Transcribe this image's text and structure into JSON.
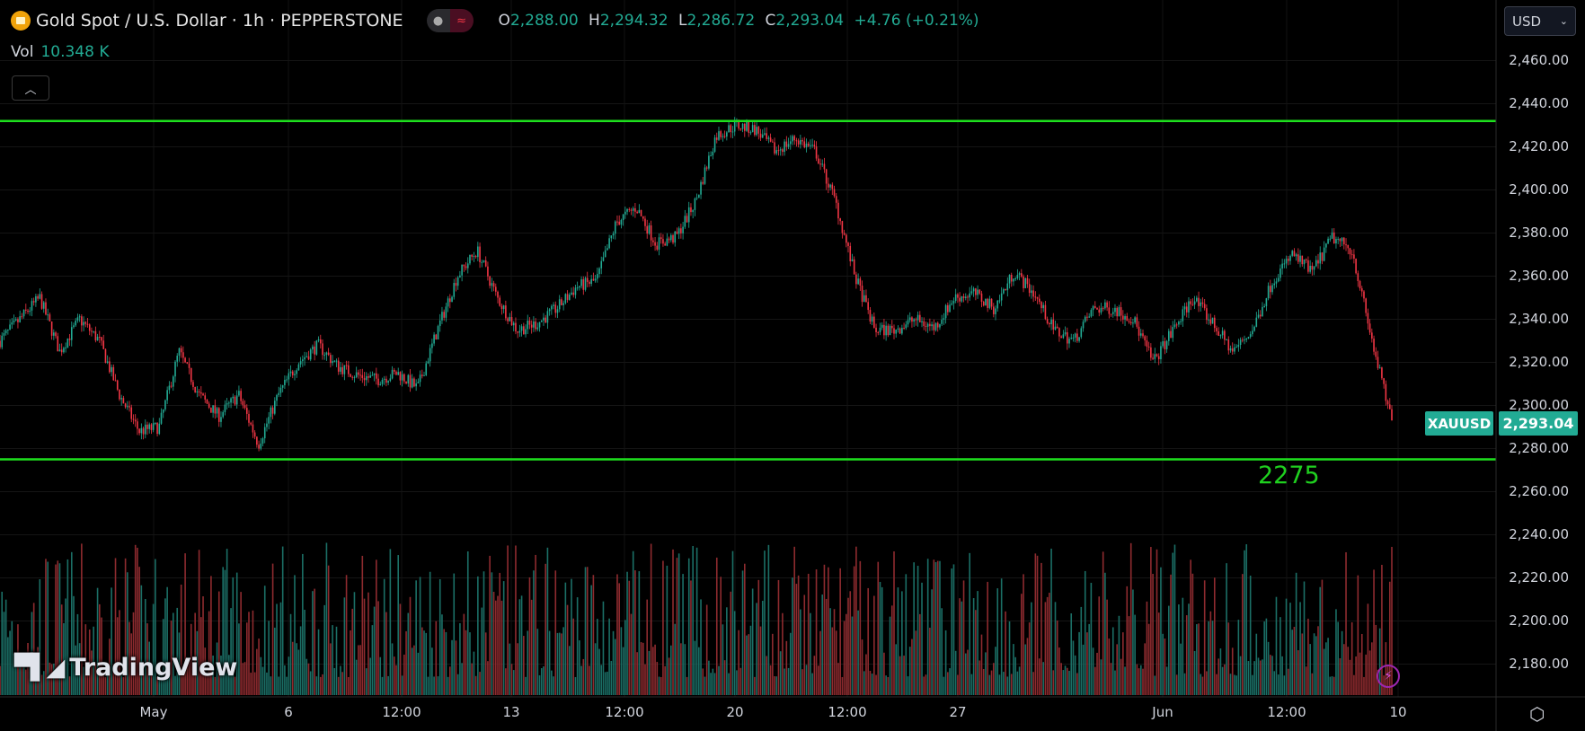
{
  "header": {
    "title": "Gold Spot / U.S. Dollar · 1h · PEPPERSTONE",
    "ohlc": [
      {
        "key": "O",
        "value": "2,288.00"
      },
      {
        "key": "H",
        "value": "2,294.32"
      },
      {
        "key": "L",
        "value": "2,286.72"
      },
      {
        "key": "C",
        "value": "2,293.04"
      }
    ],
    "change": "+4.76 (+0.21%)",
    "vol_label": "Vol",
    "vol_value": "10.348 K",
    "collapse_icon": "chevron-up-icon"
  },
  "currency_select": "USD",
  "price_axis": [
    "2,460.00",
    "2,440.00",
    "2,420.00",
    "2,400.00",
    "2,380.00",
    "2,360.00",
    "2,340.00",
    "2,320.00",
    "2,300.00",
    "2,280.00",
    "2,260.00",
    "2,240.00",
    "2,220.00",
    "2,200.00",
    "2,180.00"
  ],
  "time_axis": [
    "May",
    "6",
    "12:00",
    "13",
    "12:00",
    "20",
    "12:00",
    "27",
    "Jun",
    "12:00",
    "10"
  ],
  "last_price": {
    "symbol": "XAUUSD",
    "value": "2,293.04"
  },
  "level_label": "2275",
  "branding": "TradingView",
  "colors": {
    "up": "#22ab94",
    "down": "#f23645",
    "level_line": "#1ee01e",
    "vol_up": "#1b6f66",
    "vol_down": "#8e2b2f"
  },
  "chart_data": {
    "type": "candlestick",
    "symbol": "XAUUSD",
    "interval": "1h",
    "ylim": [
      2170,
      2470
    ],
    "horizontal_levels": [
      2432,
      2275
    ],
    "approx_close_path": [
      2330,
      2340,
      2350,
      2325,
      2340,
      2330,
      2305,
      2288,
      2290,
      2325,
      2305,
      2295,
      2305,
      2282,
      2305,
      2320,
      2328,
      2318,
      2314,
      2312,
      2315,
      2308,
      2335,
      2360,
      2372,
      2350,
      2335,
      2338,
      2345,
      2355,
      2358,
      2385,
      2392,
      2375,
      2378,
      2395,
      2425,
      2430,
      2428,
      2418,
      2424,
      2418,
      2395,
      2360,
      2335,
      2335,
      2340,
      2336,
      2350,
      2352,
      2345,
      2362,
      2352,
      2335,
      2330,
      2345,
      2345,
      2340,
      2320,
      2335,
      2350,
      2338,
      2325,
      2335,
      2358,
      2370,
      2362,
      2378,
      2372,
      2330,
      2292
    ],
    "last_close": 2293.04
  }
}
